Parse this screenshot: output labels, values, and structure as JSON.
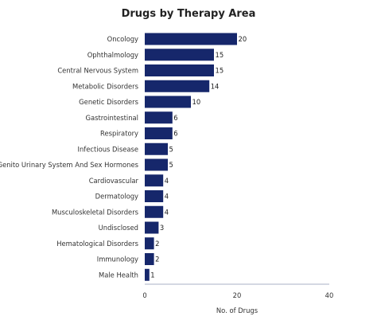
{
  "chart_data": {
    "type": "bar",
    "orientation": "horizontal",
    "title": "Drugs by Therapy Area",
    "xlabel": "No. of Drugs",
    "ylabel": "",
    "xlim": [
      0,
      40
    ],
    "xticks": [
      0,
      20,
      40
    ],
    "grid": false,
    "legend": "none",
    "colors": {
      "bar": "#16276b",
      "axis": "#aab0c4",
      "label": "#333333",
      "value_label": "#222222"
    },
    "categories": [
      "Oncology",
      "Ophthalmology",
      "Central Nervous System",
      "Metabolic Disorders",
      "Genetic Disorders",
      "Gastrointestinal",
      "Respiratory",
      "Infectious Disease",
      "Genito Urinary System And Sex Hormones",
      "Cardiovascular",
      "Dermatology",
      "Musculoskeletal Disorders",
      "Undisclosed",
      "Hematological Disorders",
      "Immunology",
      "Male Health"
    ],
    "values": [
      20,
      15,
      15,
      14,
      10,
      6,
      6,
      5,
      5,
      4,
      4,
      4,
      3,
      2,
      2,
      1
    ]
  }
}
